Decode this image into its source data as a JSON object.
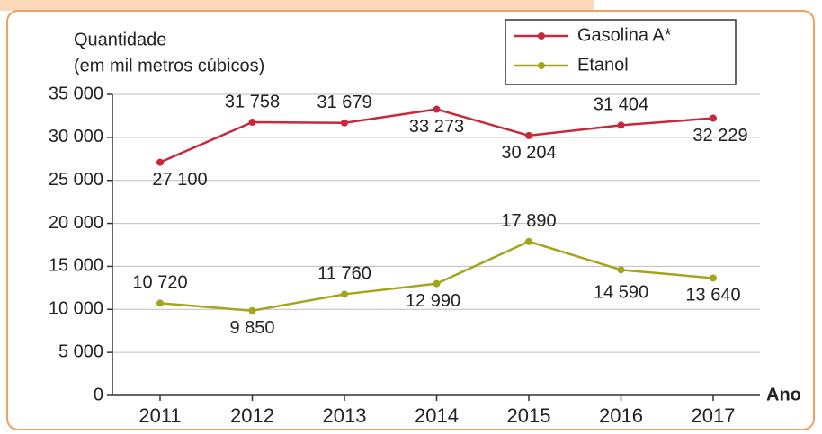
{
  "chart_data": {
    "type": "line",
    "y_label": [
      "Quantidade",
      "(em mil metros cúbicos)"
    ],
    "x_label": "Ano",
    "categories": [
      "2011",
      "2012",
      "2013",
      "2014",
      "2015",
      "2016",
      "2017"
    ],
    "series": [
      {
        "name": "Gasolina A*",
        "color": "#c8283c",
        "values": [
          27100,
          31758,
          31679,
          33273,
          30204,
          31404,
          32229
        ],
        "value_labels": [
          "27 100",
          "31 758",
          "31 679",
          "33 273",
          "30 204",
          "31 404",
          "32 229"
        ]
      },
      {
        "name": "Etanol",
        "color": "#a5a51c",
        "values": [
          10720,
          9850,
          11760,
          12990,
          17890,
          14590,
          13640
        ],
        "value_labels": [
          "10 720",
          "9 850",
          "11 760",
          "12 990",
          "17 890",
          "14 590",
          "13 640"
        ]
      }
    ],
    "ylim": [
      0,
      35000
    ],
    "yticks": [
      0,
      {
        "value": 5000,
        "label": "5 000"
      },
      {
        "value": 10000,
        "label": "10 000"
      },
      {
        "value": 15000,
        "label": "15 000"
      },
      {
        "value": 20000,
        "label": "20 000"
      },
      {
        "value": 25000,
        "label": "25 000"
      },
      {
        "value": 30000,
        "label": "30 000"
      },
      {
        "value": 35000,
        "label": "35 000"
      }
    ],
    "grid": true,
    "legend": "top-right"
  }
}
